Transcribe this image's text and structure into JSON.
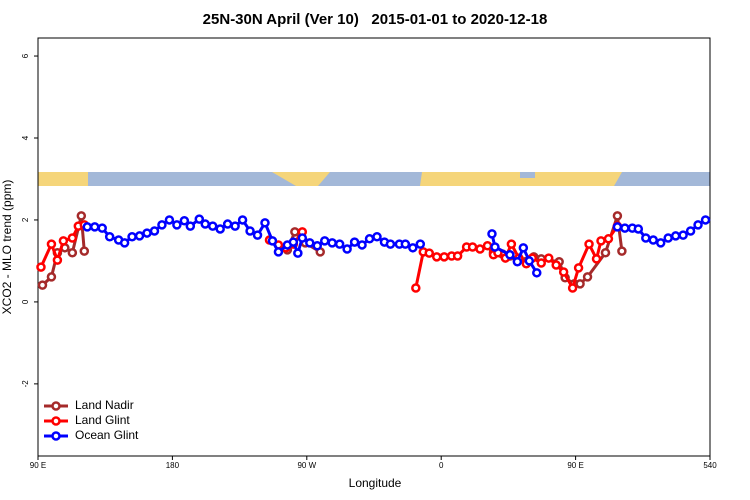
{
  "chart_data": {
    "type": "line",
    "title": "25N-30N April (Ver 10)   2015-01-01 to 2020-12-18",
    "x_label": "Longitude",
    "y_label": "XCO2 - MLO trend (ppm)",
    "xlim": [
      90,
      540
    ],
    "xticks": [
      {
        "value": 90,
        "label": "90 E"
      },
      180,
      {
        "value": 270,
        "label": "90 W"
      },
      {
        "value": 360,
        "label": "0"
      },
      {
        "value": 450,
        "label": "90 E"
      },
      540
    ],
    "ylim": [
      -3.76,
      6.44
    ],
    "yticks": [
      -2,
      0,
      2,
      4,
      6
    ],
    "legend": "bottom-left",
    "series": [
      {
        "name": "Land Nadir",
        "color": "#a52a2a",
        "x": [
          93,
          99,
          103,
          108,
          113,
          119,
          121,
          null,
          257,
          262,
          269,
          279,
          null,
          395,
          401,
          406,
          411,
          422,
          427,
          439,
          443,
          449,
          453,
          458,
          470,
          478,
          481
        ],
        "values": [
          0.41,
          0.61,
          1.2,
          1.32,
          1.2,
          2.1,
          1.24,
          null,
          1.27,
          1.71,
          1.44,
          1.22,
          null,
          1.2,
          1.17,
          1.12,
          1.02,
          1.1,
          1.05,
          0.98,
          0.59,
          0.44,
          0.44,
          0.61,
          1.2,
          2.1,
          1.24
        ]
      },
      {
        "name": "Land Glint",
        "color": "#ff0000",
        "x": [
          92,
          99,
          103,
          107,
          113,
          117,
          121,
          null,
          245,
          251,
          256,
          261,
          267,
          null,
          343,
          348,
          352,
          357,
          362,
          367,
          371,
          377,
          381,
          386,
          391,
          395,
          398,
          403,
          407,
          412,
          417,
          421,
          427,
          432,
          437,
          442,
          448,
          452,
          459,
          464,
          467,
          472,
          478
        ],
        "values": [
          0.85,
          1.41,
          1.02,
          1.49,
          1.56,
          1.85,
          1.88,
          null,
          1.51,
          1.39,
          1.32,
          1.41,
          1.71,
          null,
          0.34,
          1.22,
          1.19,
          1.1,
          1.1,
          1.12,
          1.12,
          1.34,
          1.34,
          1.29,
          1.37,
          1.15,
          1.2,
          1.07,
          1.41,
          1.07,
          0.93,
          1.07,
          0.95,
          1.07,
          0.9,
          0.73,
          0.34,
          0.83,
          1.41,
          1.05,
          1.49,
          1.54,
          1.85
        ]
      },
      {
        "name": "Ocean Glint",
        "color": "#0000ff",
        "x": [
          123,
          128,
          133,
          138,
          144,
          148,
          153,
          158,
          163,
          168,
          173,
          178,
          183,
          188,
          192,
          198,
          202,
          207,
          212,
          217,
          222,
          227,
          232,
          237,
          242,
          247,
          251,
          257,
          261,
          264,
          267,
          272,
          277,
          282,
          287,
          292,
          297,
          302,
          307,
          312,
          317,
          322,
          326,
          332,
          336,
          341,
          346,
          null,
          394,
          396,
          406,
          411,
          415,
          419,
          424,
          null,
          478,
          483,
          488,
          492,
          497,
          502,
          507,
          512,
          517,
          522,
          527,
          532,
          537
        ],
        "values": [
          1.83,
          1.83,
          1.8,
          1.59,
          1.51,
          1.44,
          1.59,
          1.61,
          1.68,
          1.73,
          1.88,
          2.0,
          1.88,
          1.98,
          1.85,
          2.02,
          1.9,
          1.85,
          1.78,
          1.9,
          1.85,
          2.0,
          1.73,
          1.63,
          1.93,
          1.49,
          1.22,
          1.39,
          1.46,
          1.19,
          1.56,
          1.44,
          1.37,
          1.49,
          1.44,
          1.41,
          1.29,
          1.46,
          1.39,
          1.54,
          1.59,
          1.46,
          1.41,
          1.41,
          1.41,
          1.32,
          1.41,
          null,
          1.66,
          1.34,
          1.15,
          0.98,
          1.32,
          1.0,
          0.71,
          null,
          1.83,
          1.8,
          1.8,
          1.78,
          1.56,
          1.51,
          1.44,
          1.56,
          1.61,
          1.63,
          1.73,
          1.88,
          2.0
        ]
      }
    ]
  }
}
